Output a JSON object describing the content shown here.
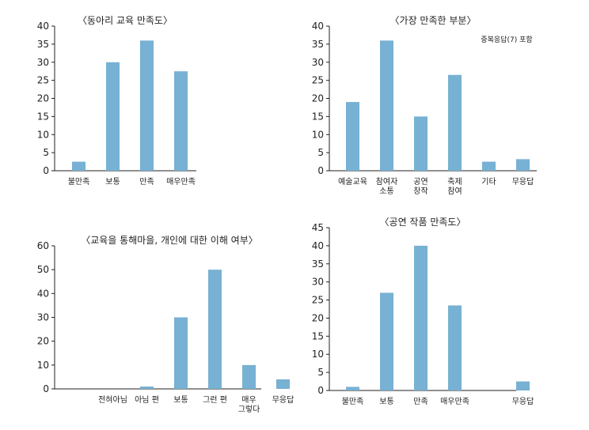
{
  "bar_color": "#77b1d3",
  "chart_data": [
    {
      "type": "bar",
      "title": "〈동아리 교육 만족도〉",
      "categories": [
        [
          "불만족"
        ],
        [
          "보통"
        ],
        [
          "만족"
        ],
        [
          "매우만족"
        ]
      ],
      "values": [
        2.5,
        30,
        36,
        27.5
      ],
      "ylim": [
        0,
        40
      ],
      "yticks": [
        0,
        5,
        10,
        15,
        20,
        25,
        30,
        35,
        40
      ],
      "note": ""
    },
    {
      "type": "bar",
      "title": "〈가장 만족한 부분〉",
      "categories": [
        [
          "예술교육"
        ],
        [
          "참여자",
          "소통"
        ],
        [
          "공연",
          "창작"
        ],
        [
          "축제",
          "참여"
        ],
        [
          "기타"
        ],
        [
          "무응답"
        ]
      ],
      "values": [
        19,
        36,
        15,
        26.5,
        2.5,
        3.2
      ],
      "ylim": [
        0,
        40
      ],
      "yticks": [
        0,
        5,
        10,
        15,
        20,
        25,
        30,
        35,
        40
      ],
      "note": "중복응답(7) 포함"
    },
    {
      "type": "bar",
      "title": "〈교육을 통해마을, 개인에 대한 이해 여부〉",
      "categories": [
        [
          "전혀아님"
        ],
        [
          "아님 편"
        ],
        [
          "보통"
        ],
        [
          "그런 편"
        ],
        [
          "매우",
          "그렇다"
        ],
        [
          "무응답"
        ]
      ],
      "values": [
        0,
        1,
        30,
        50,
        10,
        4
      ],
      "ylim": [
        0,
        60
      ],
      "yticks": [
        0,
        10,
        20,
        30,
        40,
        50,
        60
      ],
      "note": ""
    },
    {
      "type": "bar",
      "title": "〈공연 작품 만족도〉",
      "categories": [
        [
          "불만족"
        ],
        [
          "보통"
        ],
        [
          "만족"
        ],
        [
          "매우만족"
        ],
        [
          ""
        ],
        [
          "무응답"
        ]
      ],
      "values": [
        1,
        27,
        40,
        23.5,
        0,
        2.5
      ],
      "ylim": [
        0,
        45
      ],
      "yticks": [
        0,
        5,
        10,
        15,
        20,
        25,
        30,
        35,
        40,
        45
      ],
      "note": ""
    }
  ]
}
